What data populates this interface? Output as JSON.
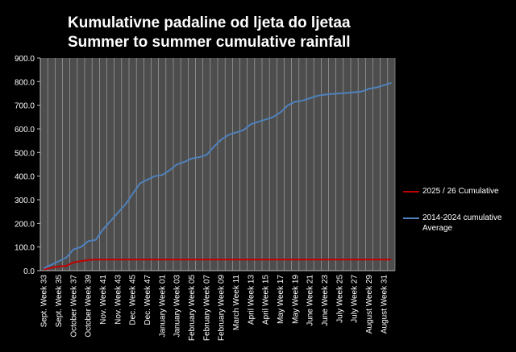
{
  "chart_data": {
    "type": "line",
    "title": "Kumulativne padaline od ljeta do ljetaa",
    "subtitle": "Summer to summer cumulative rainfall",
    "categories": [
      "Sept. Week 33",
      null,
      "Sept. Week 35",
      null,
      "October Week 37",
      null,
      "October Week 39",
      null,
      "Nov. Week 41",
      null,
      "Nov. Week 43",
      null,
      "Dec. Week 45",
      null,
      "Dec. Week 47",
      null,
      "January Week 01",
      null,
      "January Week 03",
      null,
      "February Week 05",
      null,
      "February Week 07",
      null,
      "February Week 09",
      null,
      "March Week 11",
      null,
      "April Week 13",
      null,
      "April Week 15",
      null,
      "May Week 17",
      null,
      "May Week 19",
      null,
      "June Week 21",
      null,
      "June Week 23",
      null,
      "July Week 25",
      null,
      "July Week 27",
      null,
      "August Week 29",
      null,
      "August Week 31",
      null
    ],
    "series": [
      {
        "name": "2025 / 26 Cumulative",
        "color": "#c00000",
        "values": [
          5,
          12,
          18,
          20,
          35,
          40,
          45,
          47,
          47,
          47,
          47,
          47,
          47,
          47,
          47,
          47,
          47,
          47,
          47,
          47,
          47,
          47,
          47,
          47,
          47,
          47,
          47,
          47,
          47,
          47,
          47,
          47,
          47,
          47,
          47,
          47,
          47,
          47,
          47,
          47,
          47,
          47,
          47,
          47,
          47,
          47,
          47,
          47
        ]
      },
      {
        "name": "2014-2024 cumulative Average",
        "color": "#4f81bd",
        "values": [
          10,
          25,
          40,
          55,
          90,
          100,
          125,
          130,
          175,
          210,
          245,
          280,
          325,
          370,
          385,
          400,
          405,
          425,
          450,
          460,
          475,
          480,
          490,
          525,
          555,
          575,
          585,
          595,
          620,
          630,
          640,
          650,
          670,
          700,
          715,
          720,
          730,
          740,
          745,
          748,
          750,
          752,
          755,
          758,
          770,
          775,
          785,
          795
        ]
      }
    ],
    "ylim": [
      0,
      900
    ],
    "yticks": [
      {
        "value": 0,
        "label": "0.0"
      },
      {
        "value": 100,
        "label": "100.0"
      },
      {
        "value": 200,
        "label": "200.0"
      },
      {
        "value": 300,
        "label": "300.0"
      },
      {
        "value": 400,
        "label": "400.0"
      },
      {
        "value": 500,
        "label": "500.0"
      },
      {
        "value": 600,
        "label": "600.0"
      },
      {
        "value": 700,
        "label": "700.0"
      },
      {
        "value": 800,
        "label": "800.0"
      },
      {
        "value": 900,
        "label": "900.0"
      }
    ]
  }
}
